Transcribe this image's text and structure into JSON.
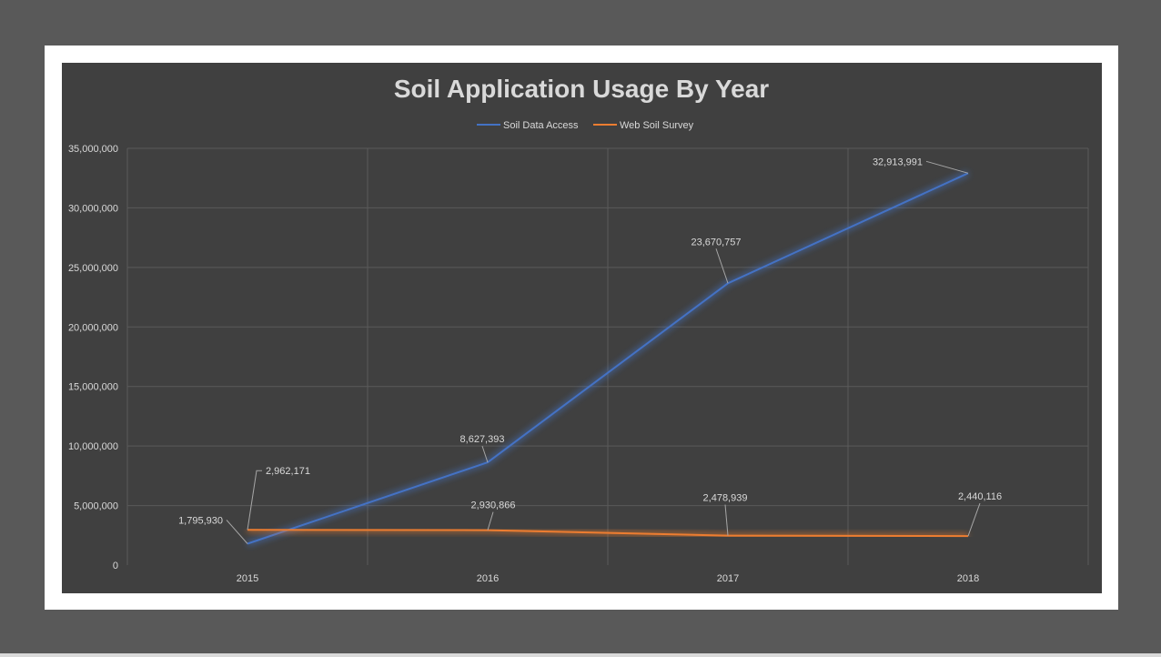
{
  "chart_data": {
    "type": "line",
    "title": "Soil Application Usage By Year",
    "xlabel": "",
    "ylabel": "",
    "categories": [
      "2015",
      "2016",
      "2017",
      "2018"
    ],
    "ylim": [
      0,
      35000000
    ],
    "y_ticks": [
      0,
      5000000,
      10000000,
      15000000,
      20000000,
      25000000,
      30000000,
      35000000
    ],
    "y_tick_labels": [
      "0",
      "5,000,000",
      "10,000,000",
      "15,000,000",
      "20,000,000",
      "25,000,000",
      "30,000,000",
      "35,000,000"
    ],
    "grid": true,
    "legend_position": "top",
    "series": [
      {
        "name": "Soil Data Access",
        "color": "#4472c4",
        "values": [
          1795930,
          8627393,
          23670757,
          32913991
        ],
        "value_labels": [
          "1,795,930",
          "8,627,393",
          "23,670,757",
          "32,913,991"
        ]
      },
      {
        "name": "Web Soil Survey",
        "color": "#ed7d31",
        "values": [
          2962171,
          2930866,
          2478939,
          2440116
        ],
        "value_labels": [
          "2,962,171",
          "2,930,866",
          "2,478,939",
          "2,440,116"
        ]
      }
    ]
  }
}
